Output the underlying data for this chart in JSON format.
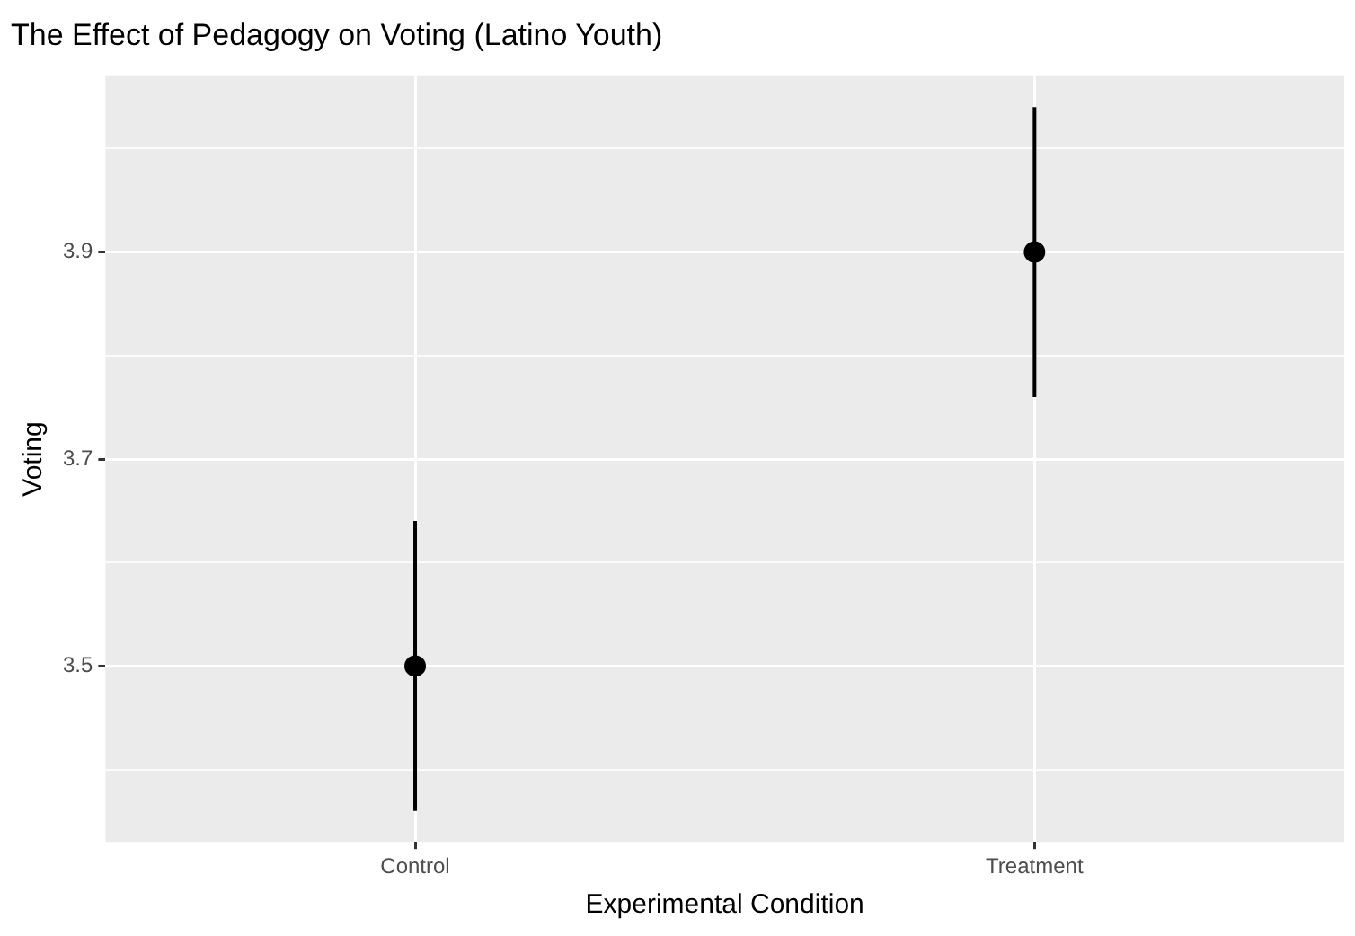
{
  "chart_data": {
    "type": "scatter",
    "title": "The Effect of Pedagogy on Voting (Latino Youth)",
    "xlabel": "Experimental Condition",
    "ylabel": "Voting",
    "categories": [
      "Control",
      "Treatment"
    ],
    "series": [
      {
        "color": "#000000",
        "values": [
          3.5,
          3.9
        ],
        "errors": [
          0.14,
          0.14
        ]
      }
    ],
    "ylim": [
      3.33,
      4.07
    ],
    "yticks": [
      {
        "value": 3.4,
        "label": null
      },
      3.5,
      {
        "value": 3.6,
        "label": null
      },
      3.7,
      {
        "value": 3.8,
        "label": null
      },
      3.9,
      {
        "value": 4.0,
        "label": null
      }
    ],
    "grid": true,
    "marker": "circle"
  }
}
